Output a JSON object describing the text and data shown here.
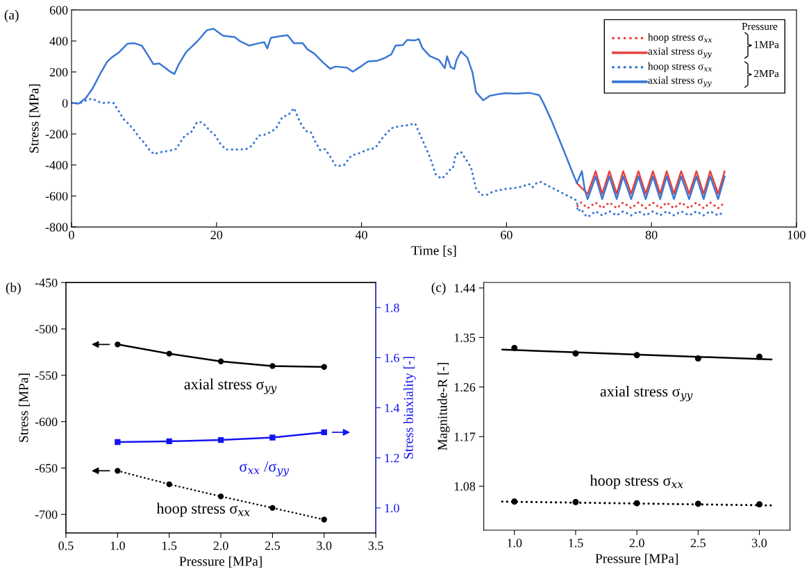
{
  "chart_data": [
    {
      "type": "line",
      "title": "(a)",
      "xlabel": "Time [s]",
      "ylabel": "Stress [MPa]",
      "xlim": [
        0,
        100
      ],
      "xticks": [
        0,
        20,
        40,
        60,
        80,
        100
      ],
      "ylim": [
        -800,
        600
      ],
      "yticks": [
        -800,
        -600,
        -400,
        -200,
        0,
        200,
        400,
        600
      ],
      "legend": "top right",
      "legend_title": "Pressure",
      "annotations": [
        "1MPa",
        "2MPa"
      ],
      "series": [
        {
          "name": "hoop stress σ$_{xx}$",
          "color": "#e8413c",
          "line_style": "dotted",
          "x": [
            69.8,
            70.3,
            71.2,
            72.3,
            73.2,
            74.2,
            75.2,
            76.1,
            77.2,
            78.2,
            79.2,
            80.2,
            81.2,
            82.1,
            83.1,
            84.1,
            85.2,
            86.2,
            87.2,
            88.1,
            89.2,
            90.1
          ],
          "values": [
            -665,
            -642,
            -679,
            -642,
            -679,
            -642,
            -679,
            -642,
            -679,
            -642,
            -679,
            -642,
            -679,
            -642,
            -679,
            -642,
            -679,
            -642,
            -679,
            -642,
            -679,
            -642
          ]
        },
        {
          "name": "axial stress σ$_{yy}$",
          "color": "#e8413c",
          "line_style": "solid",
          "x": [
            69.7,
            71.2,
            72.3,
            73.2,
            74.2,
            75.2,
            76.1,
            77.2,
            78.2,
            79.2,
            80.2,
            81.2,
            82.1,
            83.1,
            84.1,
            85.2,
            86.2,
            87.2,
            88.1,
            89.2,
            90.1
          ],
          "values": [
            -517,
            -586,
            -440,
            -586,
            -440,
            -586,
            -440,
            -586,
            -440,
            -586,
            -440,
            -586,
            -440,
            -586,
            -440,
            -586,
            -440,
            -586,
            -440,
            -586,
            -440
          ]
        },
        {
          "name": "hoop stress σ$_{xx}$",
          "color": "#3a78d4",
          "line_style": "dotted",
          "x": [
            0,
            1,
            2.1,
            2.9,
            3.6,
            4.3,
            5,
            5.8,
            6.5,
            7.2,
            7.9,
            8.6,
            9.3,
            10,
            10.7,
            11.4,
            12.1,
            12.8,
            13.4,
            13.9,
            14.4,
            14.9,
            15.4,
            15.9,
            16.4,
            16.8,
            17.3,
            17.9,
            18.5,
            19.1,
            19.8,
            20.5,
            21.3,
            22,
            22.6,
            23.3,
            24.1,
            24.9,
            25.8,
            26.6,
            27.4,
            28.2,
            29.1,
            29.9,
            30.7,
            31.5,
            32.3,
            33,
            33.6,
            34.3,
            35,
            35.8,
            36.5,
            37.6,
            38.6,
            39.7,
            40.8,
            41.9,
            43,
            44.1,
            45.2,
            46.3,
            47.4,
            48.1,
            48.8,
            49.5,
            50.2,
            50.7,
            51.1,
            51.6,
            52.2,
            52.6,
            53,
            53.7,
            54.5,
            55.1,
            55.8,
            56.5,
            57.2,
            58,
            58.8,
            59.9,
            61,
            62.1,
            63.1,
            63.6,
            64.2,
            64.7,
            67.2,
            69.7,
            69.8,
            70.3,
            70.8,
            71.2,
            72.3,
            73.2,
            74.2,
            75.2,
            76.1,
            77.2,
            78.2,
            79.2,
            80.2,
            81.2,
            82.1,
            83.1,
            84.1,
            85.2,
            86.2,
            87.2,
            88.1,
            89.2,
            90.1
          ],
          "values": [
            0,
            -4,
            18,
            28,
            10,
            -1,
            3,
            -1,
            -52,
            -105,
            -136,
            -174,
            -220,
            -255,
            -300,
            -331,
            -319,
            -313,
            -309,
            -304,
            -297,
            -262,
            -225,
            -202,
            -196,
            -166,
            -124,
            -124,
            -147,
            -180,
            -208,
            -261,
            -301,
            -300,
            -300,
            -300,
            -297,
            -276,
            -211,
            -205,
            -190,
            -165,
            -90,
            -78,
            -33,
            -123,
            -181,
            -187,
            -247,
            -304,
            -298,
            -354,
            -409,
            -400,
            -340,
            -324,
            -301,
            -291,
            -219,
            -163,
            -150,
            -144,
            -132,
            -208,
            -280,
            -357,
            -457,
            -478,
            -488,
            -466,
            -431,
            -423,
            -333,
            -314,
            -371,
            -414,
            -552,
            -592,
            -595,
            -575,
            -564,
            -554,
            -550,
            -540,
            -523,
            -544,
            -514,
            -509,
            -569,
            -629,
            -699,
            -684,
            -720,
            -736,
            -699,
            -725,
            -699,
            -725,
            -699,
            -725,
            -699,
            -725,
            -699,
            -725,
            -699,
            -725,
            -699,
            -725,
            -699,
            -725,
            -699,
            -725,
            -699
          ]
        },
        {
          "name": "axial stress σ$_{yy}$",
          "color": "#3a78d4",
          "line_style": "solid",
          "x": [
            0,
            1,
            2,
            2.9,
            3.9,
            4.9,
            5.5,
            6.5,
            7.7,
            8.7,
            9.7,
            10.6,
            11.3,
            12.1,
            12.9,
            13.5,
            14.2,
            14.8,
            15.8,
            16.4,
            17.4,
            18.7,
            19.6,
            20.9,
            22.5,
            23.2,
            24.5,
            25.8,
            26.6,
            27,
            27.5,
            28.7,
            29.8,
            30.7,
            31.9,
            32.5,
            33.5,
            34.6,
            35.7,
            36.4,
            38,
            38.8,
            39.9,
            40.9,
            42.2,
            43.1,
            44.1,
            44.7,
            45.7,
            46.3,
            47.3,
            47.9,
            48.4,
            49.4,
            50.7,
            51.5,
            51.8,
            52.3,
            52.8,
            53.1,
            53.7,
            54.6,
            55.3,
            55.8,
            56.8,
            57.7,
            58.8,
            59.9,
            61.4,
            63.2,
            64.5,
            65.1,
            66.2,
            67.7,
            69.7,
            70.4,
            70.8,
            71.2,
            72.3,
            73.2,
            74.2,
            75.2,
            76.1,
            77.2,
            78.2,
            79.2,
            80.2,
            81.2,
            82.1,
            83.1,
            84.1,
            85.2,
            86.2,
            87.2,
            88.1,
            89.2,
            90.1
          ],
          "values": [
            0,
            -4,
            33,
            93,
            183,
            265,
            292,
            325,
            382,
            385,
            370,
            303,
            250,
            255,
            228,
            205,
            187,
            250,
            328,
            355,
            400,
            470,
            478,
            434,
            425,
            400,
            370,
            385,
            392,
            352,
            420,
            430,
            437,
            385,
            385,
            348,
            318,
            265,
            220,
            235,
            228,
            202,
            235,
            268,
            273,
            288,
            313,
            370,
            373,
            407,
            403,
            412,
            355,
            303,
            276,
            224,
            301,
            232,
            219,
            276,
            332,
            293,
            199,
            69,
            17,
            46,
            56,
            63,
            60,
            65,
            51,
            0,
            -112,
            -284,
            -517,
            -440,
            -560,
            -620,
            -474,
            -620,
            -474,
            -620,
            -474,
            -620,
            -474,
            -620,
            -474,
            -620,
            -474,
            -620,
            -474,
            -620,
            -474,
            -620,
            -474,
            -620,
            -474
          ]
        }
      ]
    },
    {
      "type": "line",
      "title": "(b)",
      "xlabel": "Pressure [MPa]",
      "ylabel": "Stress [MPa]",
      "y2label": "Stress biaxiality [-]",
      "x": [
        1,
        1.5,
        2,
        2.5,
        3
      ],
      "xlim": [
        0.5,
        3.5
      ],
      "xticks": [
        0.5,
        {
          "value": 1,
          "label": "1.0"
        },
        1.5,
        {
          "value": 2,
          "label": "2.0"
        },
        2.5,
        {
          "value": 3,
          "label": "3.0"
        },
        3.5
      ],
      "ylim": [
        -720,
        -450
      ],
      "yticks": [
        -700,
        -650,
        -600,
        -550,
        -500,
        -450
      ],
      "y2lim": [
        0.9,
        1.9
      ],
      "y2ticks": [
        {
          "value": 1,
          "label": "1.0"
        },
        1.2,
        1.4,
        1.6,
        1.8
      ],
      "series": [
        {
          "name": "axial stress σ$_{yy}$",
          "color": "#000000",
          "line_style": "solid",
          "marker": "circle",
          "values": [
            -516.7,
            -526.7,
            -535,
            -540,
            -541
          ]
        },
        {
          "name": "hoop stress σ$_{xx}$",
          "color": "#000000",
          "line_style": "dotted",
          "marker": "circle",
          "values": [
            -653,
            -667.5,
            -680.6,
            -693,
            -705.6
          ]
        },
        {
          "name": "σ$_{xx}$ /σ$_{yy}$",
          "color": "#1414f0",
          "line_style": "solid",
          "marker": "square",
          "axis": "y2",
          "values": [
            1.263,
            1.266,
            1.271,
            1.281,
            1.302
          ]
        }
      ]
    },
    {
      "type": "scatter",
      "title": "(c)",
      "xlabel": "Pressure [MPa]",
      "ylabel": "Magnitude-R [-]",
      "x": [
        1,
        1.5,
        2,
        2.5,
        3
      ],
      "xlim": [
        0.75,
        3.25
      ],
      "xticks": [
        {
          "value": 1,
          "label": "1.0"
        },
        1.5,
        {
          "value": 2,
          "label": "2.0"
        },
        2.5,
        {
          "value": 3,
          "label": "3.0"
        }
      ],
      "ylim": [
        1.0,
        1.45
      ],
      "yticks": [
        1.08,
        1.17,
        1.26,
        1.35,
        1.44
      ],
      "marker": "circle",
      "series": [
        {
          "name": "axial stress σ$_{yy}$",
          "color": "#000000",
          "values": [
            1.331,
            1.321,
            1.318,
            1.312,
            1.315
          ]
        },
        {
          "name": "hoop stress σ$_{xx}$",
          "color": "#000000",
          "values": [
            1.052,
            1.051,
            1.049,
            1.048,
            1.047
          ]
        },
        {
          "type": "line",
          "color": "#000000",
          "line_style": "solid",
          "marker": "none",
          "x": [
            0.9,
            3.1
          ],
          "values": [
            1.328,
            1.31
          ]
        },
        {
          "type": "line",
          "color": "#000000",
          "line_style": "dotted",
          "marker": "none",
          "x": [
            0.9,
            3.1
          ],
          "values": [
            1.052,
            1.045
          ]
        }
      ]
    }
  ]
}
